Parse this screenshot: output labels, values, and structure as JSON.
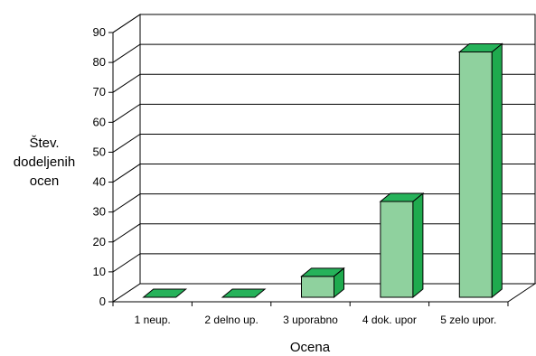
{
  "chart_data": {
    "type": "bar",
    "style": "3d-column",
    "categories": [
      "1 neup.",
      "2 delno up.",
      "3 uporabno",
      "4 dok. upor",
      "5 zelo upor."
    ],
    "values": [
      0,
      0,
      7,
      32,
      82
    ],
    "ylabel_lines": [
      "Štev.",
      "dodeljenih",
      "ocen"
    ],
    "xlabel": "Ocena",
    "ylim": [
      0,
      90
    ],
    "yticks": [
      0,
      10,
      20,
      30,
      40,
      50,
      60,
      70,
      80,
      90
    ],
    "grid": true,
    "legend": "none",
    "colors": {
      "bar_front": "#8fd19e",
      "bar_side": "#1faa4e",
      "bar_top": "#26b25a",
      "bar_outline": "#000000",
      "grid": "#000000",
      "background": "#ffffff"
    }
  }
}
